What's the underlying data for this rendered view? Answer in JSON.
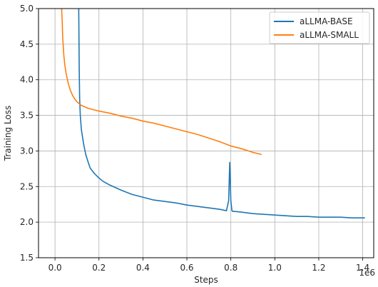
{
  "chart_data": {
    "type": "line",
    "xlabel": "Steps",
    "ylabel": "Training Loss",
    "x_offset_label": "1e6",
    "xlim": [
      -0.075,
      1.45
    ],
    "ylim": [
      1.5,
      5.0
    ],
    "x_ticks": [
      0.0,
      0.2,
      0.4,
      0.6,
      0.8,
      1.0,
      1.2,
      1.4
    ],
    "x_tick_labels": [
      "0.0",
      "0.2",
      "0.4",
      "0.6",
      "0.8",
      "1.0",
      "1.2",
      "1.4"
    ],
    "y_ticks": [
      1.5,
      2.0,
      2.5,
      3.0,
      3.5,
      4.0,
      4.5,
      5.0
    ],
    "y_tick_labels": [
      "1.5",
      "2.0",
      "2.5",
      "3.0",
      "3.5",
      "4.0",
      "4.5",
      "5.0"
    ],
    "grid": true,
    "legend_position": "top-right",
    "series": [
      {
        "name": "aLLMA-BASE",
        "color": "#1f77b4",
        "x": [
          0.108,
          0.11,
          0.112,
          0.115,
          0.12,
          0.13,
          0.14,
          0.15,
          0.16,
          0.17,
          0.18,
          0.2,
          0.22,
          0.25,
          0.3,
          0.35,
          0.4,
          0.45,
          0.5,
          0.55,
          0.6,
          0.65,
          0.7,
          0.75,
          0.78,
          0.79,
          0.795,
          0.8,
          0.805,
          0.81,
          0.82,
          0.85,
          0.9,
          0.95,
          1.0,
          1.05,
          1.1,
          1.15,
          1.2,
          1.25,
          1.3,
          1.35,
          1.4,
          1.41
        ],
        "y": [
          5.0,
          4.2,
          3.75,
          3.5,
          3.3,
          3.1,
          2.95,
          2.85,
          2.76,
          2.72,
          2.68,
          2.62,
          2.57,
          2.52,
          2.45,
          2.39,
          2.35,
          2.31,
          2.29,
          2.27,
          2.24,
          2.22,
          2.2,
          2.18,
          2.16,
          2.3,
          2.84,
          2.3,
          2.16,
          2.15,
          2.15,
          2.14,
          2.12,
          2.11,
          2.1,
          2.09,
          2.08,
          2.08,
          2.07,
          2.07,
          2.07,
          2.06,
          2.06,
          2.06
        ]
      },
      {
        "name": "aLLMA-SMALL",
        "color": "#ff7f0e",
        "x": [
          0.03,
          0.033,
          0.035,
          0.04,
          0.045,
          0.05,
          0.06,
          0.07,
          0.08,
          0.09,
          0.1,
          0.12,
          0.15,
          0.2,
          0.25,
          0.3,
          0.35,
          0.4,
          0.45,
          0.5,
          0.55,
          0.6,
          0.65,
          0.7,
          0.75,
          0.8,
          0.85,
          0.9,
          0.94
        ],
        "y": [
          5.0,
          4.8,
          4.6,
          4.35,
          4.2,
          4.1,
          3.95,
          3.85,
          3.78,
          3.73,
          3.69,
          3.64,
          3.6,
          3.56,
          3.53,
          3.49,
          3.46,
          3.42,
          3.39,
          3.35,
          3.31,
          3.27,
          3.23,
          3.18,
          3.13,
          3.07,
          3.03,
          2.98,
          2.95
        ]
      }
    ]
  }
}
